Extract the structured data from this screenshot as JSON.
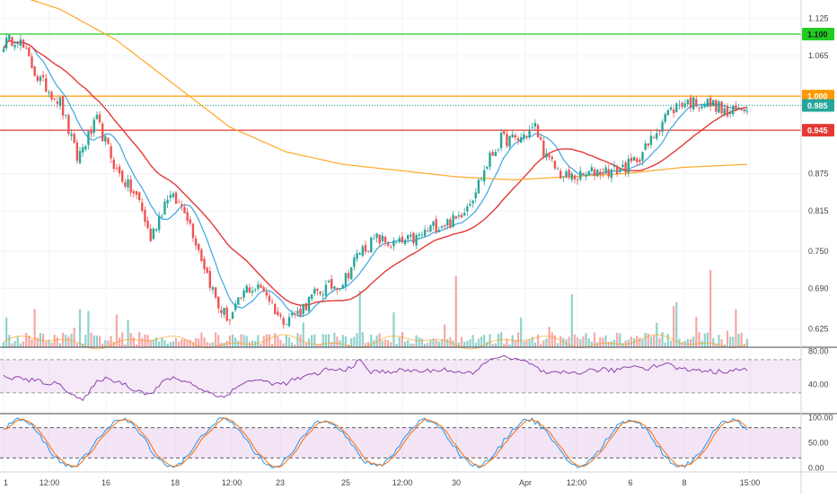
{
  "chart_data": [
    {
      "type": "candlestick",
      "name_on_chart": "",
      "price_axis": {
        "ticks": [
          "1.125",
          "1.065",
          "1.000",
          "0.945",
          "0.875",
          "0.815",
          "0.750",
          "0.690",
          "0.625"
        ],
        "ylim": [
          0.595,
          1.155
        ]
      },
      "x_axis": {
        "ticks": [
          "1",
          "12:00",
          "16",
          "18",
          "12:00",
          "23",
          "25",
          "12:00",
          "30",
          "Apr",
          "12:00",
          "6",
          "8",
          "15:00"
        ]
      },
      "price_labels": [
        {
          "text": "1.100",
          "value": 1.1,
          "color": "#22cc22"
        },
        {
          "text": "1.000",
          "value": 1.0,
          "color": "#ff9800"
        },
        {
          "text": "0.985",
          "value": 0.985,
          "color": "#26a69a"
        },
        {
          "text": "0.945",
          "value": 0.945,
          "color": "#e53935"
        }
      ],
      "horizontal_lines": [
        {
          "value": 1.1,
          "color": "#22cc22",
          "style": "solid"
        },
        {
          "value": 1.0,
          "color": "#ff9800",
          "style": "solid"
        },
        {
          "value": 0.985,
          "color": "#26a69a",
          "style": "dotted"
        },
        {
          "value": 0.945,
          "color": "#e53935",
          "style": "solid"
        }
      ],
      "close_anchors": [
        [
          0,
          1.085
        ],
        [
          5,
          1.095
        ],
        [
          12,
          1.03
        ],
        [
          20,
          0.99
        ],
        [
          26,
          0.9
        ],
        [
          33,
          0.96
        ],
        [
          40,
          0.88
        ],
        [
          48,
          0.83
        ],
        [
          52,
          0.77
        ],
        [
          58,
          0.84
        ],
        [
          64,
          0.82
        ],
        [
          70,
          0.74
        ],
        [
          76,
          0.66
        ],
        [
          80,
          0.64
        ],
        [
          86,
          0.69
        ],
        [
          92,
          0.69
        ],
        [
          98,
          0.64
        ],
        [
          104,
          0.65
        ],
        [
          110,
          0.68
        ],
        [
          114,
          0.69
        ],
        [
          120,
          0.7
        ],
        [
          126,
          0.75
        ],
        [
          132,
          0.77
        ],
        [
          138,
          0.76
        ],
        [
          146,
          0.77
        ],
        [
          152,
          0.79
        ],
        [
          160,
          0.8
        ],
        [
          166,
          0.84
        ],
        [
          172,
          0.9
        ],
        [
          176,
          0.93
        ],
        [
          182,
          0.93
        ],
        [
          188,
          0.95
        ],
        [
          192,
          0.9
        ],
        [
          198,
          0.87
        ],
        [
          204,
          0.87
        ],
        [
          210,
          0.88
        ],
        [
          216,
          0.88
        ],
        [
          222,
          0.89
        ],
        [
          228,
          0.92
        ],
        [
          234,
          0.97
        ],
        [
          240,
          0.99
        ],
        [
          246,
          0.99
        ],
        [
          252,
          0.985
        ],
        [
          256,
          0.97
        ],
        [
          263,
          0.985
        ]
      ],
      "candle_count": 264,
      "colors": {
        "up": "#26a69a",
        "down": "#ef5350"
      },
      "moving_averages": [
        {
          "color": "#3da5e0",
          "period": 10
        },
        {
          "color": "#e53935",
          "period": 30
        },
        {
          "color": "#ffa726",
          "shape": [
            [
              0,
              1.17
            ],
            [
              20,
              1.14
            ],
            [
              40,
              1.09
            ],
            [
              60,
              1.02
            ],
            [
              80,
              0.95
            ],
            [
              100,
              0.91
            ],
            [
              120,
              0.89
            ],
            [
              140,
              0.88
            ],
            [
              160,
              0.87
            ],
            [
              180,
              0.865
            ],
            [
              200,
              0.87
            ],
            [
              220,
              0.875
            ],
            [
              240,
              0.885
            ],
            [
              263,
              0.89
            ]
          ]
        }
      ]
    },
    {
      "type": "line",
      "indicator": "RSI",
      "ticks": [
        "80.00",
        "40.00"
      ],
      "ylim": [
        5,
        85
      ],
      "band": [
        30,
        70
      ],
      "color": "#8e44ad",
      "anchors": [
        [
          0,
          50
        ],
        [
          10,
          45
        ],
        [
          20,
          40
        ],
        [
          28,
          20
        ],
        [
          34,
          47
        ],
        [
          40,
          45
        ],
        [
          46,
          35
        ],
        [
          52,
          28
        ],
        [
          58,
          48
        ],
        [
          64,
          45
        ],
        [
          70,
          35
        ],
        [
          76,
          25
        ],
        [
          80,
          30
        ],
        [
          86,
          45
        ],
        [
          92,
          44
        ],
        [
          98,
          40
        ],
        [
          104,
          47
        ],
        [
          110,
          52
        ],
        [
          114,
          58
        ],
        [
          120,
          57
        ],
        [
          126,
          68
        ],
        [
          130,
          55
        ],
        [
          136,
          56
        ],
        [
          142,
          57
        ],
        [
          150,
          56
        ],
        [
          156,
          59
        ],
        [
          162,
          52
        ],
        [
          168,
          57
        ],
        [
          172,
          73
        ],
        [
          178,
          72
        ],
        [
          186,
          66
        ],
        [
          192,
          52
        ],
        [
          198,
          54
        ],
        [
          204,
          55
        ],
        [
          210,
          58
        ],
        [
          216,
          57
        ],
        [
          222,
          63
        ],
        [
          228,
          60
        ],
        [
          234,
          66
        ],
        [
          240,
          58
        ],
        [
          246,
          58
        ],
        [
          252,
          55
        ],
        [
          258,
          58
        ],
        [
          263,
          57
        ]
      ]
    },
    {
      "type": "line",
      "indicator": "Stochastic RSI",
      "ticks": [
        "100.00",
        "50.00",
        "0.00"
      ],
      "ylim": [
        -8,
        108
      ],
      "band": [
        20,
        80
      ],
      "k_color": "#2196f3",
      "d_color": "#ff6d00",
      "k_period": 36
    }
  ]
}
